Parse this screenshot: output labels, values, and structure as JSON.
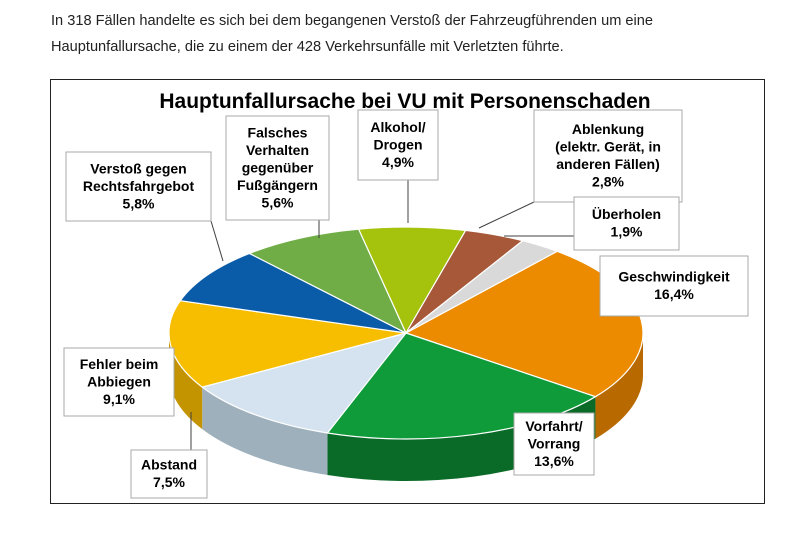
{
  "intro": {
    "line1": "In 318 Fällen handelte es sich bei dem begangenen Verstoß der Fahrzeugführenden um eine",
    "line2": "Hauptunfallursache, die zu einem der 428 Verkehrsunfälle mit Verletzten führte."
  },
  "chart_data": {
    "type": "pie",
    "title": "Hauptunfallursache bei VU mit Personenschaden",
    "slices": [
      {
        "label": [
          "Geschwindigkeit"
        ],
        "value": 16.4,
        "value_label": "16,4%",
        "color": "#ec8a00",
        "side": "#b86a00"
      },
      {
        "label": [
          "Vorfahrt/",
          "Vorrang"
        ],
        "value": 13.6,
        "value_label": "13,6%",
        "color": "#0f9b3a",
        "side": "#0a6b28"
      },
      {
        "label": [
          "Abstand"
        ],
        "value": 7.5,
        "value_label": "7,5%",
        "color": "#d4e3ef",
        "side": "#9fb0bd"
      },
      {
        "label": [
          "Fehler beim",
          "Abbiegen"
        ],
        "value": 9.1,
        "value_label": "9,1%",
        "color": "#f7be00",
        "side": "#c49300"
      },
      {
        "label": [
          "Verstoß gegen",
          "Rechtsfahrgebot"
        ],
        "value": 5.8,
        "value_label": "5,8%",
        "color": "#0b5ca8",
        "side": "#07427a"
      },
      {
        "label": [
          "Falsches",
          "Verhalten",
          "gegenüber",
          "Fußgängern"
        ],
        "value": 5.6,
        "value_label": "5,6%",
        "color": "#70ad47",
        "side": "#527f33"
      },
      {
        "label": [
          "Alkohol/",
          "Drogen"
        ],
        "value": 4.9,
        "value_label": "4,9%",
        "color": "#a5c30d",
        "side": "#7a900a"
      },
      {
        "label": [
          "Ablenkung",
          "(elektr. Gerät, in",
          "anderen Fällen)"
        ],
        "value": 2.8,
        "value_label": "2,8%",
        "color": "#a65838",
        "side": "#7a4029"
      },
      {
        "label": [
          "Überholen"
        ],
        "value": 1.9,
        "value_label": "1,9%",
        "color": "#d9d9d9",
        "side": "#a8a8a8"
      }
    ]
  }
}
